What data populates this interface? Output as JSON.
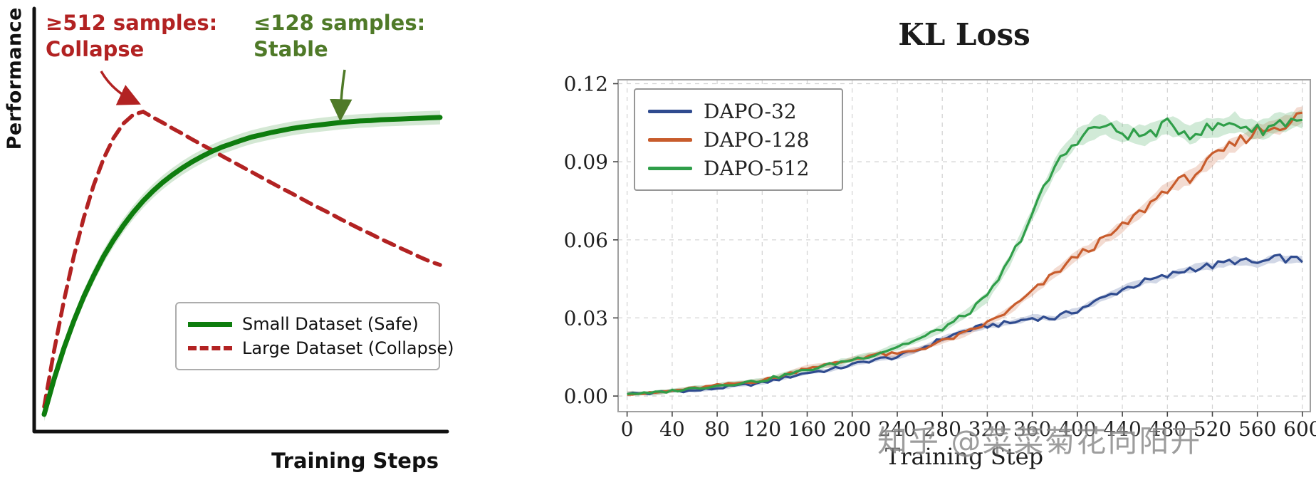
{
  "chart_data": [
    {
      "type": "line",
      "title": "",
      "xlabel": "Training Steps",
      "ylabel": "Performance",
      "xlim": [
        0,
        1
      ],
      "ylim": [
        0,
        1
      ],
      "grid": false,
      "legend_position": "lower right",
      "annotations": [
        {
          "line1": "≥512 samples:",
          "line2": "Collapse",
          "color": "#b22222"
        },
        {
          "line1": "≤128 samples:",
          "line2": "Stable",
          "color": "#4f7a28"
        }
      ],
      "x": [
        0,
        0.025,
        0.05,
        0.075,
        0.1,
        0.125,
        0.15,
        0.175,
        0.2,
        0.225,
        0.25,
        0.275,
        0.3,
        0.325,
        0.35,
        0.375,
        0.4,
        0.425,
        0.45,
        0.475,
        0.5,
        0.525,
        0.55,
        0.575,
        0.6,
        0.625,
        0.65,
        0.675,
        0.7,
        0.725,
        0.75,
        0.775,
        0.8,
        0.825,
        0.85,
        0.875,
        0.9,
        0.925,
        0.95,
        0.975,
        1
      ],
      "series": [
        {
          "name": "Small Dataset (Safe)",
          "style": "solid",
          "color": "#0e7d0e",
          "band": 0.018,
          "values": [
            0.03,
            0.122,
            0.203,
            0.274,
            0.337,
            0.392,
            0.442,
            0.485,
            0.523,
            0.557,
            0.587,
            0.613,
            0.636,
            0.656,
            0.674,
            0.69,
            0.704,
            0.717,
            0.728,
            0.737,
            0.746,
            0.754,
            0.76,
            0.766,
            0.771,
            0.776,
            0.78,
            0.783,
            0.786,
            0.789,
            0.792,
            0.794,
            0.796,
            0.797,
            0.799,
            0.8,
            0.801,
            0.802,
            0.803,
            0.804,
            0.805
          ]
        },
        {
          "name": "Large Dataset (Collapse)",
          "style": "dashed",
          "color": "#b22222",
          "band": 0,
          "values": [
            0.05,
            0.196,
            0.327,
            0.443,
            0.543,
            0.628,
            0.697,
            0.751,
            0.789,
            0.812,
            0.82,
            0.805,
            0.791,
            0.776,
            0.762,
            0.747,
            0.733,
            0.719,
            0.704,
            0.69,
            0.676,
            0.662,
            0.648,
            0.634,
            0.62,
            0.607,
            0.593,
            0.579,
            0.566,
            0.553,
            0.539,
            0.526,
            0.513,
            0.501,
            0.488,
            0.476,
            0.464,
            0.452,
            0.44,
            0.429,
            0.42
          ]
        }
      ]
    },
    {
      "type": "line",
      "title": "KL Loss",
      "xlabel": "Training Step",
      "ylabel": "",
      "xlim": [
        -8,
        607
      ],
      "ylim": [
        -0.006,
        0.1215
      ],
      "grid": true,
      "legend_position": "upper left",
      "x_ticks": [
        0,
        40,
        80,
        120,
        160,
        200,
        240,
        280,
        320,
        360,
        400,
        440,
        480,
        520,
        560,
        600
      ],
      "y_ticks": [
        0,
        0.03,
        0.06,
        0.09,
        0.12
      ],
      "watermark": "知乎 @菜菜菊花向阳开",
      "x": [
        0,
        20,
        40,
        60,
        80,
        100,
        120,
        140,
        160,
        180,
        200,
        220,
        240,
        260,
        280,
        300,
        320,
        340,
        360,
        380,
        400,
        420,
        440,
        460,
        480,
        500,
        520,
        540,
        560,
        580,
        600
      ],
      "series": [
        {
          "name": "DAPO-32",
          "color": "#2f4b8f",
          "band": 0.0018,
          "values": [
            0.001,
            0.001,
            0.002,
            0.002,
            0.003,
            0.004,
            0.005,
            0.007,
            0.009,
            0.01,
            0.012,
            0.014,
            0.015,
            0.018,
            0.022,
            0.025,
            0.027,
            0.028,
            0.03,
            0.03,
            0.033,
            0.037,
            0.041,
            0.044,
            0.046,
            0.049,
            0.05,
            0.052,
            0.051,
            0.053,
            0.052
          ]
        },
        {
          "name": "DAPO-128",
          "color": "#c85c2c",
          "band": 0.0022,
          "values": [
            0.001,
            0.001,
            0.002,
            0.003,
            0.004,
            0.005,
            0.006,
            0.008,
            0.011,
            0.012,
            0.014,
            0.016,
            0.016,
            0.018,
            0.021,
            0.024,
            0.028,
            0.033,
            0.04,
            0.047,
            0.054,
            0.059,
            0.065,
            0.072,
            0.08,
            0.084,
            0.091,
            0.097,
            0.102,
            0.104,
            0.108
          ]
        },
        {
          "name": "DAPO-512",
          "color": "#2f9e49",
          "band": 0.0028,
          "values": [
            0.001,
            0.001,
            0.002,
            0.003,
            0.004,
            0.005,
            0.006,
            0.008,
            0.01,
            0.012,
            0.014,
            0.016,
            0.019,
            0.022,
            0.026,
            0.031,
            0.038,
            0.052,
            0.07,
            0.088,
            0.099,
            0.104,
            0.101,
            0.1,
            0.104,
            0.101,
            0.103,
            0.105,
            0.102,
            0.105,
            0.107
          ]
        }
      ]
    }
  ]
}
